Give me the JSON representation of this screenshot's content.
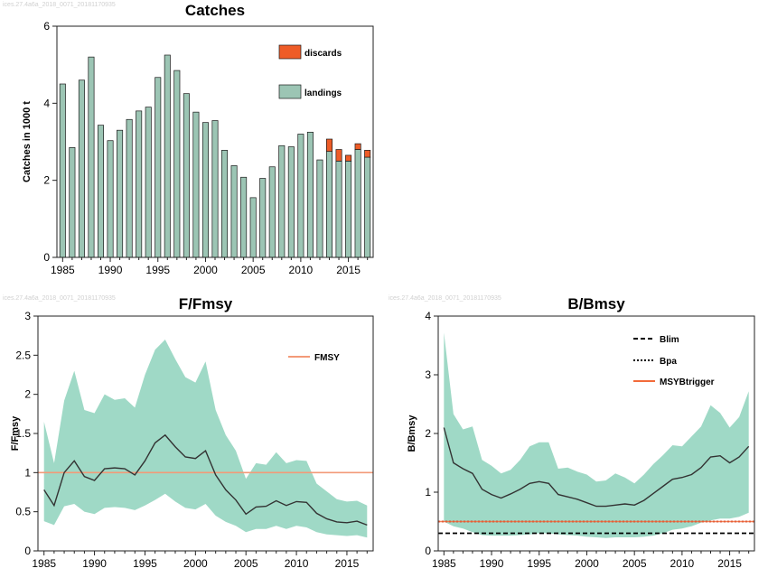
{
  "watermarks": [
    "ices.27.4a6a_2018_0071_20181170935",
    "ices.27.4a6a_2018_0071_20181170935",
    "ices.27.4a6a_2018_0071_20181170935"
  ],
  "colors": {
    "landings": "#9cc5b4",
    "discards": "#ee5c27",
    "band": "#9fd9c6",
    "line": "#333333",
    "fmsy": "#f39a78",
    "bpa": "#b01818",
    "msy": "#f26b3a",
    "blim": "#000000"
  },
  "chart_data": [
    {
      "type": "bar",
      "title": "Catches",
      "ylabel": "Catches in 1000 t",
      "xlabel": "",
      "ylim": [
        0,
        6
      ],
      "yticks": [
        0,
        2,
        4,
        6
      ],
      "xticks": [
        1985,
        1990,
        1995,
        2000,
        2005,
        2010,
        2015
      ],
      "legend": "top-right",
      "categories": [
        1985,
        1986,
        1987,
        1988,
        1989,
        1990,
        1991,
        1992,
        1993,
        1994,
        1995,
        1996,
        1997,
        1998,
        1999,
        2000,
        2001,
        2002,
        2003,
        2004,
        2005,
        2006,
        2007,
        2008,
        2009,
        2010,
        2011,
        2012,
        2013,
        2014,
        2015,
        2016,
        2017
      ],
      "series": [
        {
          "name": "landings",
          "values": [
            4.5,
            2.85,
            4.6,
            5.2,
            3.43,
            3.03,
            3.3,
            3.58,
            3.8,
            3.9,
            4.67,
            5.25,
            4.85,
            4.25,
            3.77,
            3.5,
            3.55,
            2.78,
            2.38,
            2.08,
            1.55,
            2.05,
            2.35,
            2.9,
            2.87,
            3.2,
            3.25,
            2.53,
            2.75,
            2.5,
            2.5,
            2.8,
            2.6
          ]
        },
        {
          "name": "discards",
          "values": [
            0,
            0,
            0,
            0,
            0,
            0,
            0,
            0,
            0,
            0,
            0,
            0,
            0,
            0,
            0,
            0,
            0,
            0,
            0,
            0,
            0,
            0,
            0,
            0,
            0,
            0,
            0,
            0,
            0.32,
            0.3,
            0.15,
            0.15,
            0.18
          ]
        }
      ]
    },
    {
      "type": "line",
      "title": "F/Fmsy",
      "ylabel": "F/Fmsy",
      "xlabel": "",
      "ylim": [
        0,
        3
      ],
      "yticks": [
        0,
        0.5,
        1,
        1.5,
        2,
        2.5,
        3
      ],
      "xticks": [
        1985,
        1990,
        1995,
        2000,
        2005,
        2010,
        2015
      ],
      "legend": "top-right",
      "x": [
        1985,
        1986,
        1987,
        1988,
        1989,
        1990,
        1991,
        1992,
        1993,
        1994,
        1995,
        1996,
        1997,
        1998,
        1999,
        2000,
        2001,
        2002,
        2003,
        2004,
        2005,
        2006,
        2007,
        2008,
        2009,
        2010,
        2011,
        2012,
        2013,
        2014,
        2015,
        2016,
        2017
      ],
      "estimate": [
        0.78,
        0.58,
        1.0,
        1.15,
        0.95,
        0.9,
        1.05,
        1.06,
        1.05,
        0.97,
        1.15,
        1.38,
        1.48,
        1.33,
        1.2,
        1.18,
        1.28,
        0.97,
        0.78,
        0.65,
        0.47,
        0.56,
        0.57,
        0.64,
        0.58,
        0.63,
        0.62,
        0.48,
        0.41,
        0.37,
        0.36,
        0.38,
        0.33
      ],
      "upper": [
        1.65,
        1.12,
        1.92,
        2.3,
        1.8,
        1.76,
        2.0,
        1.93,
        1.95,
        1.83,
        2.25,
        2.57,
        2.7,
        2.45,
        2.22,
        2.15,
        2.42,
        1.8,
        1.48,
        1.28,
        0.92,
        1.12,
        1.1,
        1.26,
        1.12,
        1.16,
        1.15,
        0.86,
        0.76,
        0.66,
        0.63,
        0.64,
        0.58
      ],
      "lower": [
        0.38,
        0.33,
        0.57,
        0.6,
        0.5,
        0.47,
        0.55,
        0.56,
        0.55,
        0.52,
        0.58,
        0.65,
        0.73,
        0.63,
        0.55,
        0.53,
        0.6,
        0.45,
        0.37,
        0.32,
        0.24,
        0.28,
        0.28,
        0.32,
        0.28,
        0.32,
        0.3,
        0.24,
        0.21,
        0.2,
        0.19,
        0.2,
        0.17
      ],
      "references": [
        {
          "name": "FMSY",
          "value": 1
        }
      ]
    },
    {
      "type": "line",
      "title": "B/Bmsy",
      "ylabel": "B/Bmsy",
      "xlabel": "",
      "ylim": [
        0,
        4
      ],
      "yticks": [
        0,
        1,
        2,
        3,
        4
      ],
      "xticks": [
        1985,
        1990,
        1995,
        2000,
        2005,
        2010,
        2015
      ],
      "legend": "top-right",
      "x": [
        1985,
        1986,
        1987,
        1988,
        1989,
        1990,
        1991,
        1992,
        1993,
        1994,
        1995,
        1996,
        1997,
        1998,
        1999,
        2000,
        2001,
        2002,
        2003,
        2004,
        2005,
        2006,
        2007,
        2008,
        2009,
        2010,
        2011,
        2012,
        2013,
        2014,
        2015,
        2016,
        2017
      ],
      "estimate": [
        2.1,
        1.5,
        1.4,
        1.32,
        1.05,
        0.96,
        0.9,
        0.97,
        1.05,
        1.15,
        1.18,
        1.15,
        0.96,
        0.92,
        0.88,
        0.82,
        0.76,
        0.76,
        0.78,
        0.8,
        0.78,
        0.86,
        0.98,
        1.1,
        1.22,
        1.25,
        1.3,
        1.42,
        1.6,
        1.62,
        1.5,
        1.6,
        1.78
      ],
      "upper": [
        3.72,
        2.33,
        2.07,
        2.12,
        1.55,
        1.45,
        1.32,
        1.38,
        1.55,
        1.78,
        1.85,
        1.85,
        1.4,
        1.42,
        1.35,
        1.3,
        1.18,
        1.2,
        1.32,
        1.25,
        1.15,
        1.3,
        1.48,
        1.63,
        1.8,
        1.78,
        1.95,
        2.12,
        2.48,
        2.35,
        2.1,
        2.28,
        2.72
      ],
      "lower": [
        0.5,
        0.42,
        0.38,
        0.32,
        0.27,
        0.26,
        0.26,
        0.26,
        0.27,
        0.28,
        0.3,
        0.3,
        0.28,
        0.27,
        0.26,
        0.24,
        0.23,
        0.22,
        0.23,
        0.23,
        0.23,
        0.24,
        0.26,
        0.3,
        0.36,
        0.38,
        0.42,
        0.48,
        0.52,
        0.55,
        0.55,
        0.58,
        0.65
      ],
      "references": [
        {
          "name": "Blim",
          "value": 0.3
        },
        {
          "name": "Bpa",
          "value": 0.5
        },
        {
          "name": "MSYBtrigger",
          "value": 0.5
        }
      ]
    }
  ]
}
